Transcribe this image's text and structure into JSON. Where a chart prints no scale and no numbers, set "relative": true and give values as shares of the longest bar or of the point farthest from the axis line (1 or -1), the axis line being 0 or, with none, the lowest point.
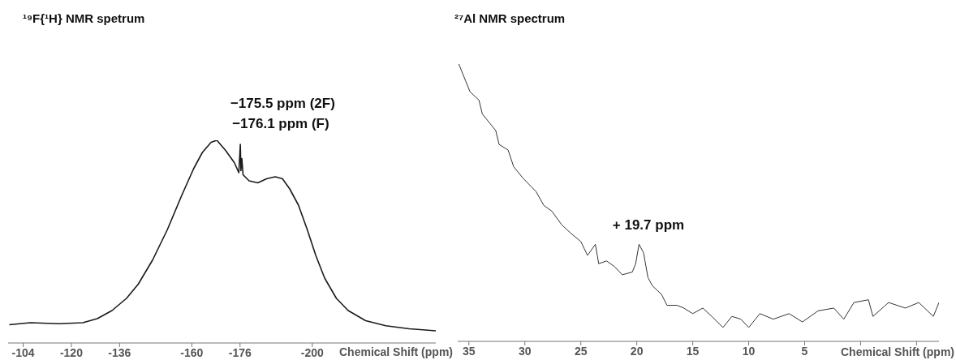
{
  "chart_data": [
    {
      "type": "line",
      "title": "¹⁹F{¹H} NMR spetrum",
      "xlabel": "Chemical Shift (ppm)",
      "relative": true,
      "xlim": [
        -99,
        -241
      ],
      "xticks": [
        -104,
        -120,
        -136,
        -160,
        -176,
        -200
      ],
      "series": [
        {
          "color": "#1a1a1a",
          "x": [
            -99.4,
            -106.4,
            -116.0,
            -123.8,
            -128.6,
            -133.5,
            -138.3,
            -142.2,
            -147.0,
            -151.9,
            -156.7,
            -160.6,
            -163.5,
            -166.4,
            -168.3,
            -171.2,
            -174.1,
            -175.6,
            -176.1,
            -176.3,
            -176.6,
            -177.0,
            -179.0,
            -181.9,
            -184.8,
            -187.7,
            -190.1,
            -192.5,
            -195.4,
            -198.3,
            -201.2,
            -204.1,
            -208.0,
            -211.9,
            -217.7,
            -224.4,
            -232.2,
            -241.0
          ],
          "values": [
            0.09,
            0.1,
            0.095,
            0.1,
            0.12,
            0.16,
            0.22,
            0.29,
            0.41,
            0.56,
            0.73,
            0.86,
            0.94,
            0.99,
            1.0,
            0.95,
            0.89,
            0.84,
            0.98,
            0.85,
            0.91,
            0.83,
            0.8,
            0.79,
            0.81,
            0.82,
            0.81,
            0.76,
            0.68,
            0.56,
            0.43,
            0.32,
            0.22,
            0.16,
            0.11,
            0.085,
            0.07,
            0.06
          ]
        }
      ],
      "annotations": [
        {
          "text": "−175.5 ppm (2F)",
          "x": -175.5,
          "y": 0.98
        },
        {
          "text": "−176.1 ppm (F)",
          "x": -176.1,
          "y": 0.98
        }
      ]
    },
    {
      "type": "line",
      "title": "²⁷Al NMR spectrum",
      "xlabel": "Chemical Shift (ppm)",
      "relative": true,
      "xlim": [
        36,
        -7
      ],
      "xticks": [
        35,
        30,
        25,
        20,
        15,
        10,
        5,
        {
          "value": 0,
          "label": null
        },
        {
          "value": -5,
          "label": null
        }
      ],
      "series": [
        {
          "color": "#333333",
          "x": [
            35.9,
            35.3,
            34.9,
            34.1,
            33.8,
            33.0,
            32.6,
            32.3,
            31.5,
            31.0,
            30.2,
            29.0,
            28.3,
            27.6,
            26.7,
            25.9,
            25.0,
            24.4,
            23.7,
            23.4,
            22.7,
            22.0,
            21.3,
            20.4,
            20.1,
            19.8,
            19.4,
            19.0,
            18.6,
            17.8,
            17.3,
            16.4,
            15.8,
            15.0,
            14.1,
            13.3,
            12.3,
            11.5,
            10.7,
            10.0,
            9.0,
            7.8,
            6.4,
            5.2,
            3.8,
            2.4,
            1.5,
            0.6,
            -0.7,
            -1.1,
            -2.5,
            -4.0,
            -5.2,
            -6.5,
            -7.0
          ],
          "values": [
            1.0,
            0.94,
            0.9,
            0.87,
            0.82,
            0.78,
            0.76,
            0.71,
            0.69,
            0.63,
            0.59,
            0.54,
            0.49,
            0.47,
            0.42,
            0.39,
            0.36,
            0.31,
            0.35,
            0.28,
            0.29,
            0.27,
            0.24,
            0.25,
            0.28,
            0.35,
            0.32,
            0.23,
            0.2,
            0.17,
            0.13,
            0.13,
            0.12,
            0.1,
            0.12,
            0.09,
            0.05,
            0.09,
            0.08,
            0.05,
            0.1,
            0.08,
            0.1,
            0.07,
            0.11,
            0.12,
            0.08,
            0.14,
            0.15,
            0.09,
            0.14,
            0.12,
            0.14,
            0.09,
            0.14
          ]
        }
      ],
      "annotations": [
        {
          "text": "+ 19.7 ppm",
          "x": 19.7,
          "y": 0.35
        }
      ]
    }
  ]
}
